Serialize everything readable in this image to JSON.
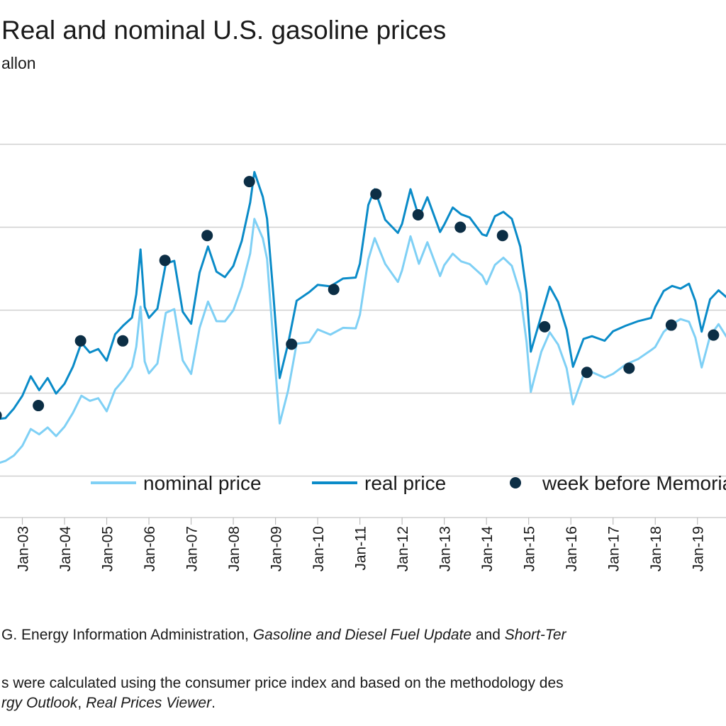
{
  "chart_data": {
    "type": "line",
    "title": "Real and nominal U.S. gasoline prices",
    "ylabel": "allon",
    "ylim": [
      0.5,
      5.5
    ],
    "xlim": [
      2002.0,
      2020.5
    ],
    "grid": true,
    "legend_placement": "bottom",
    "x_tick_labels": [
      "Jan-03",
      "Jan-04",
      "Jan-05",
      "Jan-06",
      "Jan-07",
      "Jan-08",
      "Jan-09",
      "Jan-10",
      "Jan-11",
      "Jan-12",
      "Jan-13",
      "Jan-14",
      "Jan-15",
      "Jan-16",
      "Jan-17",
      "Jan-18",
      "Jan-19"
    ],
    "x_tick_values": [
      2003,
      2004,
      2005,
      2006,
      2007,
      2008,
      2009,
      2010,
      2011,
      2012,
      2013,
      2014,
      2015,
      2016,
      2017,
      2018,
      2019
    ],
    "colors": {
      "nominal": "#7fd0f5",
      "real": "#0a8bc8",
      "memorial": "#0c2e45",
      "grid": "#d0d0d0"
    },
    "series": [
      {
        "name": "nominal price",
        "x": [
          2002.0,
          2002.3,
          2002.6,
          2002.8,
          2003.0,
          2003.2,
          2003.4,
          2003.6,
          2003.8,
          2004.0,
          2004.2,
          2004.4,
          2004.6,
          2004.8,
          2005.0,
          2005.2,
          2005.4,
          2005.6,
          2005.7,
          2005.8,
          2005.9,
          2006.0,
          2006.2,
          2006.4,
          2006.6,
          2006.8,
          2007.0,
          2007.2,
          2007.4,
          2007.6,
          2007.8,
          2008.0,
          2008.2,
          2008.4,
          2008.5,
          2008.7,
          2008.8,
          2008.95,
          2009.1,
          2009.3,
          2009.5,
          2009.8,
          2010.0,
          2010.3,
          2010.6,
          2010.9,
          2011.0,
          2011.2,
          2011.35,
          2011.6,
          2011.9,
          2012.0,
          2012.2,
          2012.4,
          2012.6,
          2012.9,
          2013.0,
          2013.2,
          2013.4,
          2013.6,
          2013.9,
          2014.0,
          2014.2,
          2014.4,
          2014.6,
          2014.8,
          2014.95,
          2015.05,
          2015.3,
          2015.5,
          2015.7,
          2015.9,
          2016.05,
          2016.3,
          2016.5,
          2016.8,
          2017.0,
          2017.3,
          2017.6,
          2017.9,
          2018.0,
          2018.2,
          2018.4,
          2018.6,
          2018.8,
          2018.95,
          2019.1,
          2019.3,
          2019.5,
          2019.8,
          2020.0,
          2020.3
        ],
        "values": [
          1.2,
          1.15,
          1.2,
          1.25,
          1.35,
          1.55,
          1.5,
          1.6,
          1.5,
          1.6,
          1.75,
          1.95,
          1.9,
          1.95,
          1.8,
          2.05,
          2.15,
          2.3,
          2.55,
          3.05,
          2.4,
          2.25,
          2.35,
          2.95,
          3.0,
          2.4,
          2.25,
          2.8,
          3.1,
          2.85,
          2.85,
          3.0,
          3.3,
          3.7,
          4.1,
          3.85,
          3.6,
          2.6,
          1.65,
          2.05,
          2.6,
          2.6,
          2.75,
          2.7,
          2.8,
          2.8,
          2.95,
          3.6,
          3.85,
          3.55,
          3.35,
          3.5,
          3.9,
          3.55,
          3.8,
          3.4,
          3.55,
          3.7,
          3.6,
          3.55,
          3.4,
          3.3,
          3.55,
          3.65,
          3.55,
          3.2,
          2.6,
          2.0,
          2.5,
          2.75,
          2.6,
          2.3,
          1.85,
          2.2,
          2.25,
          2.2,
          2.25,
          2.35,
          2.4,
          2.5,
          2.55,
          2.75,
          2.85,
          2.9,
          2.85,
          2.65,
          2.3,
          2.7,
          2.85,
          2.6,
          2.55,
          2.45
        ]
      },
      {
        "name": "real price",
        "x": [
          2002.0,
          2002.3,
          2002.6,
          2002.8,
          2003.0,
          2003.2,
          2003.4,
          2003.6,
          2003.8,
          2004.0,
          2004.2,
          2004.4,
          2004.6,
          2004.8,
          2005.0,
          2005.2,
          2005.4,
          2005.6,
          2005.7,
          2005.8,
          2005.9,
          2006.0,
          2006.2,
          2006.4,
          2006.6,
          2006.8,
          2007.0,
          2007.2,
          2007.4,
          2007.6,
          2007.8,
          2008.0,
          2008.2,
          2008.4,
          2008.5,
          2008.7,
          2008.8,
          2008.95,
          2009.1,
          2009.3,
          2009.5,
          2009.8,
          2010.0,
          2010.3,
          2010.6,
          2010.9,
          2011.0,
          2011.2,
          2011.35,
          2011.6,
          2011.9,
          2012.0,
          2012.2,
          2012.4,
          2012.6,
          2012.9,
          2013.0,
          2013.2,
          2013.4,
          2013.6,
          2013.9,
          2014.0,
          2014.2,
          2014.4,
          2014.6,
          2014.8,
          2014.95,
          2015.05,
          2015.3,
          2015.5,
          2015.7,
          2015.9,
          2016.05,
          2016.3,
          2016.5,
          2016.8,
          2017.0,
          2017.3,
          2017.6,
          2017.9,
          2018.0,
          2018.2,
          2018.4,
          2018.6,
          2018.8,
          2018.95,
          2019.1,
          2019.3,
          2019.5,
          2019.8,
          2020.0,
          2020.3
        ],
        "values": [
          1.75,
          1.7,
          1.7,
          1.8,
          1.95,
          2.2,
          2.05,
          2.2,
          2.0,
          2.1,
          2.3,
          2.6,
          2.5,
          2.55,
          2.4,
          2.7,
          2.8,
          2.9,
          3.2,
          3.75,
          3.05,
          2.9,
          3.0,
          3.55,
          3.6,
          3.0,
          2.85,
          3.45,
          3.75,
          3.45,
          3.4,
          3.55,
          3.85,
          4.3,
          4.65,
          4.35,
          4.1,
          3.2,
          2.2,
          2.6,
          3.1,
          3.2,
          3.3,
          3.3,
          3.4,
          3.4,
          3.55,
          4.25,
          4.45,
          4.1,
          3.95,
          4.05,
          4.45,
          4.1,
          4.35,
          3.95,
          4.05,
          4.25,
          4.15,
          4.1,
          3.9,
          3.9,
          4.15,
          4.2,
          4.1,
          3.75,
          3.2,
          2.5,
          2.95,
          3.3,
          3.1,
          2.75,
          2.3,
          2.65,
          2.7,
          2.65,
          2.75,
          2.8,
          2.85,
          2.9,
          3.05,
          3.25,
          3.3,
          3.25,
          3.3,
          3.1,
          2.75,
          3.15,
          3.25,
          3.1,
          3.0,
          2.95
        ]
      },
      {
        "name": "week before Memorial Day",
        "x": [
          2002.38,
          2003.38,
          2004.38,
          2005.38,
          2006.38,
          2007.38,
          2008.38,
          2009.38,
          2010.38,
          2011.38,
          2012.38,
          2013.38,
          2014.38,
          2015.38,
          2016.38,
          2017.38,
          2018.38,
          2019.38
        ],
        "values": [
          1.73,
          1.85,
          2.63,
          2.63,
          3.6,
          3.9,
          4.55,
          2.59,
          3.25,
          4.4,
          4.15,
          4.0,
          3.9,
          2.8,
          2.25,
          2.3,
          2.82,
          2.7
        ]
      }
    ]
  },
  "source_note": {
    "prefix": "G. Energy Information Administration, ",
    "italic1": "Gasoline and Diesel Fuel Update",
    "mid": " and ",
    "italic2": "Short-Ter"
  },
  "note": {
    "line1": "s were calculated using the consumer price index and based on the methodology des",
    "line2_italic1": "rgy Outlook",
    "line2_sep": ", ",
    "line2_italic2": "Real Prices Viewer",
    "line2_end": "."
  }
}
